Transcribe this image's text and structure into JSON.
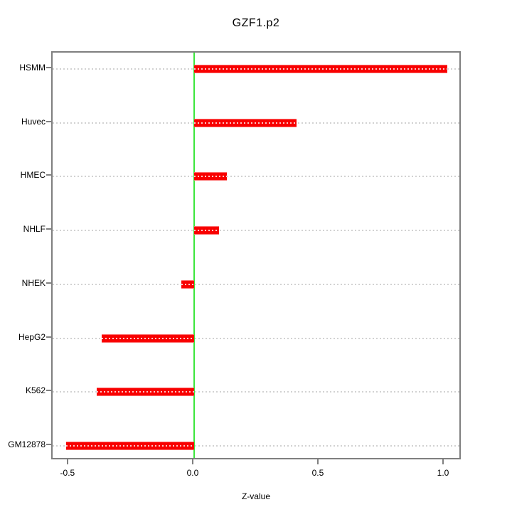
{
  "title": "GZF1.p2",
  "chart_data": {
    "type": "bar",
    "orientation": "horizontal",
    "title": "GZF1.p2",
    "xlabel": "Z-value",
    "categories": [
      "HSMM",
      "Huvec",
      "HMEC",
      "NHLF",
      "NHEK",
      "HepG2",
      "K562",
      "GM12878"
    ],
    "values": [
      1.01,
      0.41,
      0.13,
      0.1,
      -0.05,
      -0.37,
      -0.39,
      -0.51
    ],
    "x_ticks": [
      -0.5,
      0.0,
      0.5,
      1.0
    ],
    "x_tick_labels": [
      "-0.5",
      "0.0",
      "0.5",
      "1.0"
    ],
    "xlim": [
      -0.565,
      1.071
    ],
    "grid": "horizontal dotted line per category",
    "legend": "none",
    "zero_reference_line": 0,
    "colors": {
      "bar": "#f80000",
      "zero_line": "#3ce63c",
      "axis": "#7f7f7f",
      "gridline": "#d2d2d2",
      "text": "#000000",
      "background": "#ffffff"
    }
  }
}
